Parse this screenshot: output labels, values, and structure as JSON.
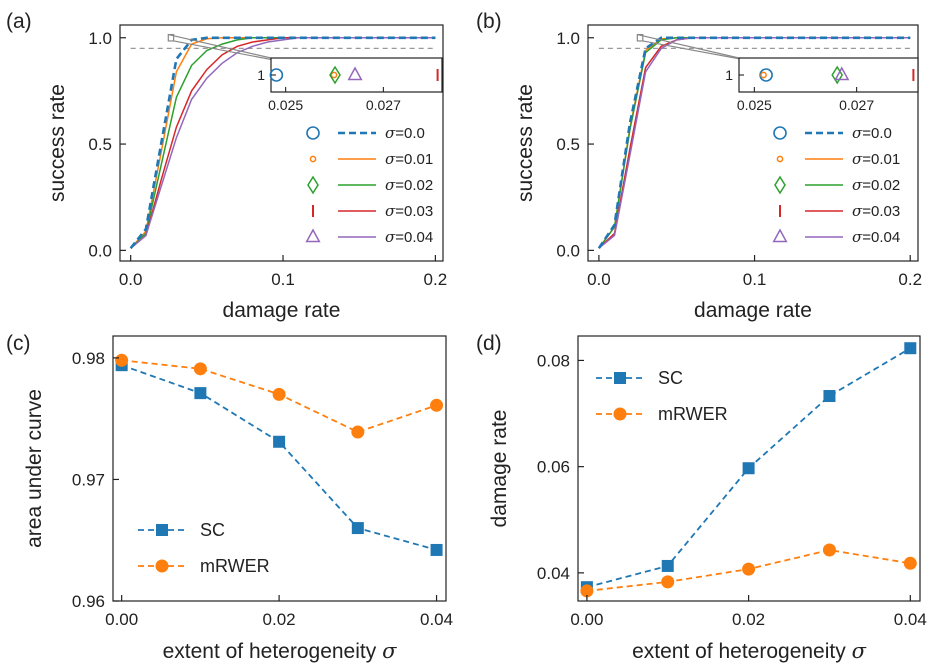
{
  "colors": {
    "blue": "#1f77b4",
    "orange": "#ff7f0e",
    "green": "#2ca02c",
    "red": "#d62728",
    "purple": "#9467bd",
    "ref_line": "#999999"
  },
  "chart_data": [
    {
      "panel": "(a)",
      "type": "line",
      "xlabel": "damage rate",
      "ylabel": "success rate",
      "xlim": [
        0,
        0.2
      ],
      "ylim": [
        0,
        1
      ],
      "xticks": [
        "0.0",
        "0.1",
        "0.2"
      ],
      "yticks": [
        "0.0",
        "0.5",
        "1.0"
      ],
      "reference_line_y": 0.95,
      "x": [
        0.0,
        0.01,
        0.02,
        0.03,
        0.04,
        0.05,
        0.06,
        0.07,
        0.08,
        0.09,
        0.1,
        0.11,
        0.12,
        0.13,
        0.14,
        0.15,
        0.16,
        0.17,
        0.18,
        0.19,
        0.2
      ],
      "series": [
        {
          "name": "σ=0.0",
          "color": "#1f77b4",
          "dashed": true,
          "values": [
            0.01,
            0.1,
            0.5,
            0.9,
            0.99,
            1,
            1,
            1,
            1,
            1,
            1,
            1,
            1,
            1,
            1,
            1,
            1,
            1,
            1,
            1,
            1
          ]
        },
        {
          "name": "σ=0.01",
          "color": "#ff7f0e",
          "dashed": false,
          "values": [
            0.01,
            0.09,
            0.46,
            0.84,
            0.97,
            0.995,
            1,
            1,
            1,
            1,
            1,
            1,
            1,
            1,
            1,
            1,
            1,
            1,
            1,
            1,
            1
          ]
        },
        {
          "name": "σ=0.02",
          "color": "#2ca02c",
          "dashed": false,
          "values": [
            0.01,
            0.08,
            0.4,
            0.72,
            0.87,
            0.94,
            0.97,
            0.99,
            1,
            1,
            1,
            1,
            1,
            1,
            1,
            1,
            1,
            1,
            1,
            1,
            1
          ]
        },
        {
          "name": "σ=0.03",
          "color": "#d62728",
          "dashed": false,
          "values": [
            0.01,
            0.07,
            0.33,
            0.58,
            0.75,
            0.85,
            0.92,
            0.96,
            0.98,
            0.99,
            1,
            1,
            1,
            1,
            1,
            1,
            1,
            1,
            1,
            1,
            1
          ]
        },
        {
          "name": "σ=0.04",
          "color": "#9467bd",
          "dashed": false,
          "values": [
            0.01,
            0.07,
            0.3,
            0.53,
            0.71,
            0.81,
            0.88,
            0.93,
            0.96,
            0.98,
            0.99,
            1,
            1,
            1,
            1,
            1,
            1,
            1,
            1,
            1,
            1
          ]
        }
      ],
      "inset": {
        "xlim": [
          0.0247,
          0.0282
        ],
        "xticks": [
          "0.025",
          "0.027"
        ],
        "ytick": "1",
        "markers": [
          {
            "name": "σ=0.0",
            "x": 0.02481,
            "marker": "circle",
            "color": "#1f77b4"
          },
          {
            "name": "σ=0.01",
            "x": 0.02599,
            "marker": "small-circle",
            "color": "#ff7f0e"
          },
          {
            "name": "σ=0.02",
            "x": 0.02601,
            "marker": "diamond",
            "color": "#2ca02c"
          },
          {
            "name": "σ=0.03",
            "x": 0.02811,
            "marker": "vline",
            "color": "#d62728"
          },
          {
            "name": "σ=0.04",
            "x": 0.02642,
            "marker": "triangle",
            "color": "#9467bd"
          }
        ]
      }
    },
    {
      "panel": "(b)",
      "type": "line",
      "xlabel": "damage rate",
      "ylabel": "success rate",
      "xlim": [
        0,
        0.2
      ],
      "ylim": [
        0,
        1
      ],
      "xticks": [
        "0.0",
        "0.1",
        "0.2"
      ],
      "yticks": [
        "0.0",
        "0.5",
        "1.0"
      ],
      "reference_line_y": 0.95,
      "x": [
        0.0,
        0.01,
        0.02,
        0.03,
        0.04,
        0.05,
        0.06,
        0.07,
        0.08,
        0.09,
        0.1,
        0.11,
        0.12,
        0.13,
        0.14,
        0.15,
        0.16,
        0.17,
        0.18,
        0.19,
        0.2
      ],
      "series": [
        {
          "name": "σ=0.0",
          "color": "#1f77b4",
          "dashed": true,
          "values": [
            0.01,
            0.12,
            0.6,
            0.95,
            1,
            1,
            1,
            1,
            1,
            1,
            1,
            1,
            1,
            1,
            1,
            1,
            1,
            1,
            1,
            1,
            1
          ]
        },
        {
          "name": "σ=0.01",
          "color": "#ff7f0e",
          "dashed": false,
          "values": [
            0.01,
            0.11,
            0.58,
            0.94,
            0.995,
            1,
            1,
            1,
            1,
            1,
            1,
            1,
            1,
            1,
            1,
            1,
            1,
            1,
            1,
            1,
            1
          ]
        },
        {
          "name": "σ=0.02",
          "color": "#2ca02c",
          "dashed": false,
          "values": [
            0.01,
            0.11,
            0.57,
            0.93,
            0.99,
            1,
            1,
            1,
            1,
            1,
            1,
            1,
            1,
            1,
            1,
            1,
            1,
            1,
            1,
            1,
            1
          ]
        },
        {
          "name": "σ=0.03",
          "color": "#d62728",
          "dashed": false,
          "values": [
            0.01,
            0.08,
            0.48,
            0.86,
            0.96,
            0.99,
            1,
            1,
            1,
            1,
            1,
            1,
            1,
            1,
            1,
            1,
            1,
            1,
            1,
            1,
            1
          ]
        },
        {
          "name": "σ=0.04",
          "color": "#9467bd",
          "dashed": false,
          "values": [
            0.01,
            0.07,
            0.45,
            0.84,
            0.95,
            0.99,
            1,
            1,
            1,
            1,
            1,
            1,
            1,
            1,
            1,
            1,
            1,
            1,
            1,
            1,
            1
          ]
        }
      ],
      "inset": {
        "xlim": [
          0.0247,
          0.0282
        ],
        "xticks": [
          "0.025",
          "0.027"
        ],
        "ytick": "1",
        "markers": [
          {
            "name": "σ=0.0",
            "x": 0.02523,
            "marker": "circle",
            "color": "#1f77b4"
          },
          {
            "name": "σ=0.01",
            "x": 0.02518,
            "marker": "small-circle",
            "color": "#ff7f0e"
          },
          {
            "name": "σ=0.02",
            "x": 0.02662,
            "marker": "diamond",
            "color": "#2ca02c"
          },
          {
            "name": "σ=0.03",
            "x": 0.02811,
            "marker": "vline",
            "color": "#d62728"
          },
          {
            "name": "σ=0.04",
            "x": 0.02671,
            "marker": "triangle",
            "color": "#9467bd"
          }
        ]
      }
    },
    {
      "panel": "(c)",
      "type": "line",
      "xlabel_prefix": "extent of heterogeneity ",
      "xlabel_symbol": "σ",
      "ylabel": "area under curve",
      "xlim": [
        0,
        0.04
      ],
      "ylim": [
        0.96,
        0.98
      ],
      "xticks": [
        "0.00",
        "0.02",
        "0.04"
      ],
      "yticks": [
        "0.96",
        "0.97",
        "0.98"
      ],
      "x": [
        0.0,
        0.01,
        0.02,
        0.03,
        0.04
      ],
      "series": [
        {
          "name": "SC",
          "color": "#1f77b4",
          "marker": "square",
          "values": [
            0.9794,
            0.9771,
            0.9731,
            0.966,
            0.9642
          ]
        },
        {
          "name": "mRWER",
          "color": "#ff7f0e",
          "marker": "circle",
          "values": [
            0.9798,
            0.9791,
            0.977,
            0.9739,
            0.9761
          ]
        }
      ]
    },
    {
      "panel": "(d)",
      "type": "line",
      "xlabel_prefix": "extent of heterogeneity ",
      "xlabel_symbol": "σ",
      "ylabel": "damage rate",
      "xlim": [
        0,
        0.04
      ],
      "ylim": [
        0.04,
        0.08
      ],
      "xticks": [
        "0.00",
        "0.02",
        "0.04"
      ],
      "yticks": [
        "0.04",
        "0.06",
        "0.08"
      ],
      "x": [
        0.0,
        0.01,
        0.02,
        0.03,
        0.04
      ],
      "series": [
        {
          "name": "SC",
          "color": "#1f77b4",
          "marker": "square",
          "values": [
            0.0373,
            0.0413,
            0.0597,
            0.0733,
            0.0823
          ]
        },
        {
          "name": "mRWER",
          "color": "#ff7f0e",
          "marker": "circle",
          "values": [
            0.0366,
            0.0383,
            0.0407,
            0.0443,
            0.0418
          ]
        }
      ]
    }
  ]
}
